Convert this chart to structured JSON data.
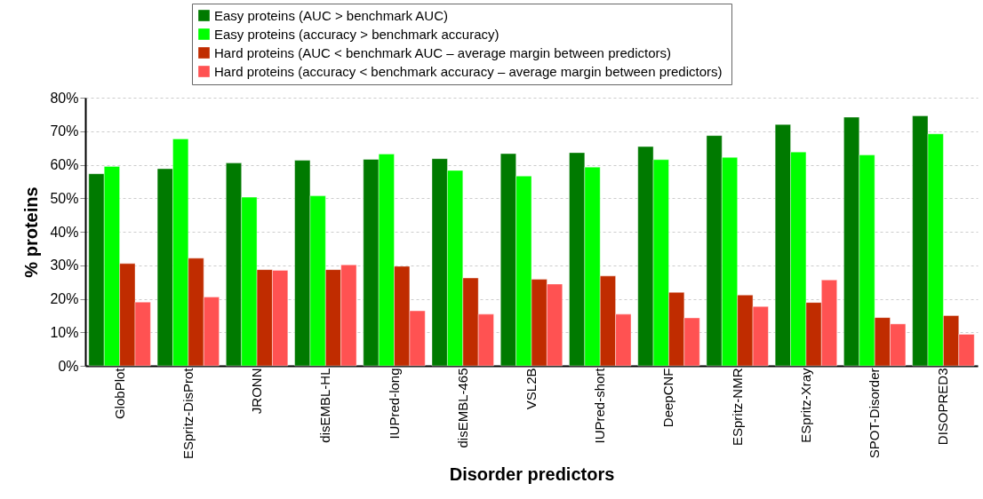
{
  "chart_data": {
    "type": "bar",
    "xlabel": "Disorder predictors",
    "ylabel": "% proteins",
    "categories": [
      "GlobPlot",
      "ESpritz-DisProt",
      "JRONN",
      "disEMBL-HL",
      "IUPred-long",
      "disEMBL-465",
      "VSL2B",
      "IUPred-short",
      "DeepCNF",
      "ESpritz-NMR",
      "ESpritz-Xray",
      "SPOT-Disorder",
      "DISOPRED3"
    ],
    "series": [
      {
        "name": "Easy proteins (AUC > benchmark AUC)",
        "color": "#007a00",
        "values": [
          57.3,
          58.8,
          60.5,
          61.3,
          61.6,
          61.8,
          63.3,
          63.6,
          65.4,
          68.7,
          72.0,
          74.2,
          74.6
        ]
      },
      {
        "name": "Easy proteins (accuracy > benchmark accuracy)",
        "color": "#00ff00",
        "values": [
          59.5,
          67.7,
          50.3,
          50.7,
          63.2,
          58.3,
          56.6,
          59.3,
          61.5,
          62.2,
          63.8,
          62.9,
          69.2
        ]
      },
      {
        "name": "Hard proteins (AUC < benchmark AUC – average margin between predictors)",
        "color": "#c02c00",
        "values": [
          30.5,
          32.1,
          28.7,
          28.7,
          29.7,
          26.2,
          25.8,
          26.8,
          21.9,
          21.1,
          18.9,
          14.4,
          15.0
        ]
      },
      {
        "name": "Hard proteins  (accuracy < benchmark accuracy – average margin between predictors)",
        "color": "#ff5252",
        "values": [
          19.0,
          20.5,
          28.5,
          30.1,
          16.4,
          15.4,
          24.4,
          15.4,
          14.3,
          17.7,
          25.6,
          12.5,
          9.4
        ]
      }
    ],
    "ylim": [
      0,
      80
    ],
    "yticks": [
      {
        "value": 0,
        "label": "0%"
      },
      {
        "value": 10,
        "label": "10%"
      },
      {
        "value": 20,
        "label": "20%"
      },
      {
        "value": 30,
        "label": "30%"
      },
      {
        "value": 40,
        "label": "40%"
      },
      {
        "value": 50,
        "label": "50%"
      },
      {
        "value": 60,
        "label": "60%"
      },
      {
        "value": 70,
        "label": "70%"
      },
      {
        "value": 80,
        "label": "80%"
      }
    ],
    "grid": "y",
    "legend": "top"
  }
}
